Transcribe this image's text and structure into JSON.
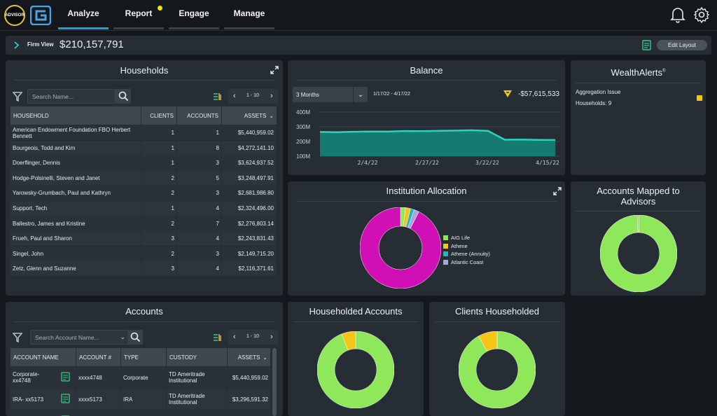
{
  "app": {
    "badge": "ADVISOR"
  },
  "nav": {
    "items": [
      {
        "label": "Analyze"
      },
      {
        "label": "Report"
      },
      {
        "label": "Engage"
      },
      {
        "label": "Manage"
      }
    ]
  },
  "firm": {
    "label": "Firm View",
    "value": "$210,157,791",
    "edit_layout": "Edit Layout"
  },
  "households": {
    "title": "Households",
    "search_placeholder": "Search Name...",
    "pagination": "1 - 10",
    "columns": [
      "HOUSEHOLD",
      "CLIENTS",
      "ACCOUNTS",
      "ASSETS"
    ],
    "rows": [
      {
        "name": "American Endowment Foundation FBO Herbert Bennett",
        "clients": "1",
        "accounts": "1",
        "assets": "$5,440,959.02"
      },
      {
        "name": "Bourgeois, Todd and Kim",
        "clients": "1",
        "accounts": "8",
        "assets": "$4,272,141.10"
      },
      {
        "name": "Doerflinger, Dennis",
        "clients": "1",
        "accounts": "3",
        "assets": "$3,624,937.52"
      },
      {
        "name": "Hodge-Polsinelli, Steven and Janet",
        "clients": "2",
        "accounts": "5",
        "assets": "$3,248,497.91"
      },
      {
        "name": "Yarowsky-Grumbach, Paul and Kathryn",
        "clients": "2",
        "accounts": "3",
        "assets": "$2,681,986.80"
      },
      {
        "name": "Support, Tech",
        "clients": "1",
        "accounts": "4",
        "assets": "$2,324,496.00"
      },
      {
        "name": "Ballestro, James and Kristine",
        "clients": "2",
        "accounts": "7",
        "assets": "$2,276,803.14"
      },
      {
        "name": "Frueh, Paul and Sharon",
        "clients": "3",
        "accounts": "4",
        "assets": "$2,243,831.43"
      },
      {
        "name": "Singel, John",
        "clients": "2",
        "accounts": "3",
        "assets": "$2,149,715.20"
      },
      {
        "name": "Zetz, Glenn and Suzanne",
        "clients": "3",
        "accounts": "4",
        "assets": "$2,116,371.61"
      }
    ]
  },
  "accounts": {
    "title": "Accounts",
    "search_placeholder": "Search Account Name...",
    "pagination": "1 - 10",
    "columns": [
      "ACCOUNT NAME",
      "ACCOUNT #",
      "TYPE",
      "CUSTODY",
      "ASSETS"
    ],
    "rows": [
      {
        "name": "Corporate-\nxx4748",
        "num": "xxxx4748",
        "type": "Corporate",
        "custody": "TD Ameritrade\nInstitutional",
        "assets": "$5,440,959.02"
      },
      {
        "name": "IRA- xx5173",
        "num": "xxxx5173",
        "type": "IRA",
        "custody": "TD Ameritrade\nInstitutional",
        "assets": "$3,296,591.32"
      },
      {
        "name": "",
        "num": "",
        "type": "",
        "custody": "TD Ameritrade",
        "assets": ""
      }
    ]
  },
  "balance": {
    "title": "Balance",
    "period": "3 Months",
    "range": "1/17/22 - 4/17/22",
    "change": "-$57,615,533",
    "chart_data": {
      "type": "area",
      "yticks": [
        "400M",
        "300M",
        "200M",
        "100M"
      ],
      "xticks": [
        "2/4/22",
        "2/27/22",
        "3/22/22",
        "4/15/22"
      ],
      "ylim": [
        100,
        400
      ],
      "x": [
        "1/17/22",
        "1/24/22",
        "1/31/22",
        "2/7/22",
        "2/14/22",
        "2/21/22",
        "2/28/22",
        "3/7/22",
        "3/14/22",
        "3/21/22",
        "3/28/22",
        "3/31/22",
        "4/3/22",
        "4/10/22",
        "4/17/22"
      ],
      "values": [
        265,
        263,
        266,
        268,
        267,
        271,
        270,
        272,
        274,
        276,
        272,
        212,
        213,
        211,
        210
      ],
      "color": "#1fa89a"
    }
  },
  "wealth_alerts": {
    "title": "WealthAlerts",
    "mark": "®",
    "item": "Aggregation Issue",
    "households_label": "Households: 9",
    "color": "#f5c518"
  },
  "allocation": {
    "title": "Institution Allocation",
    "legend": [
      {
        "label": "AIG Life",
        "color": "#8ee85a"
      },
      {
        "label": "Athene",
        "color": "#f5c518"
      },
      {
        "label": "Athene (Annuity)",
        "color": "#1fb5c4"
      },
      {
        "label": "Atlantic Coast",
        "color": "#a8a8d8"
      }
    ],
    "chart_data": {
      "type": "pie",
      "labels": [
        "AIG Life",
        "Athene",
        "Athene (Annuity)",
        "Atlantic Coast",
        "Other"
      ],
      "values": [
        2,
        2,
        1.5,
        2,
        92.5
      ],
      "colors": [
        "#8ee85a",
        "#f5c518",
        "#1fb5c4",
        "#a8a8d8",
        "#d010b4"
      ]
    }
  },
  "mapped": {
    "title": "Accounts Mapped to Advisors",
    "chart_data": {
      "type": "pie",
      "values": [
        99.5,
        0.5
      ],
      "colors": [
        "#8ee85a",
        "#d4a020"
      ]
    }
  },
  "householded_accounts": {
    "title": "Householded Accounts",
    "chart_data": {
      "type": "pie",
      "values": [
        94,
        6
      ],
      "colors": [
        "#8ee85a",
        "#f5c518"
      ]
    }
  },
  "clients_householded": {
    "title": "Clients Householded",
    "chart_data": {
      "type": "pie",
      "values": [
        92,
        8
      ],
      "colors": [
        "#8ee85a",
        "#f5c518"
      ]
    }
  }
}
